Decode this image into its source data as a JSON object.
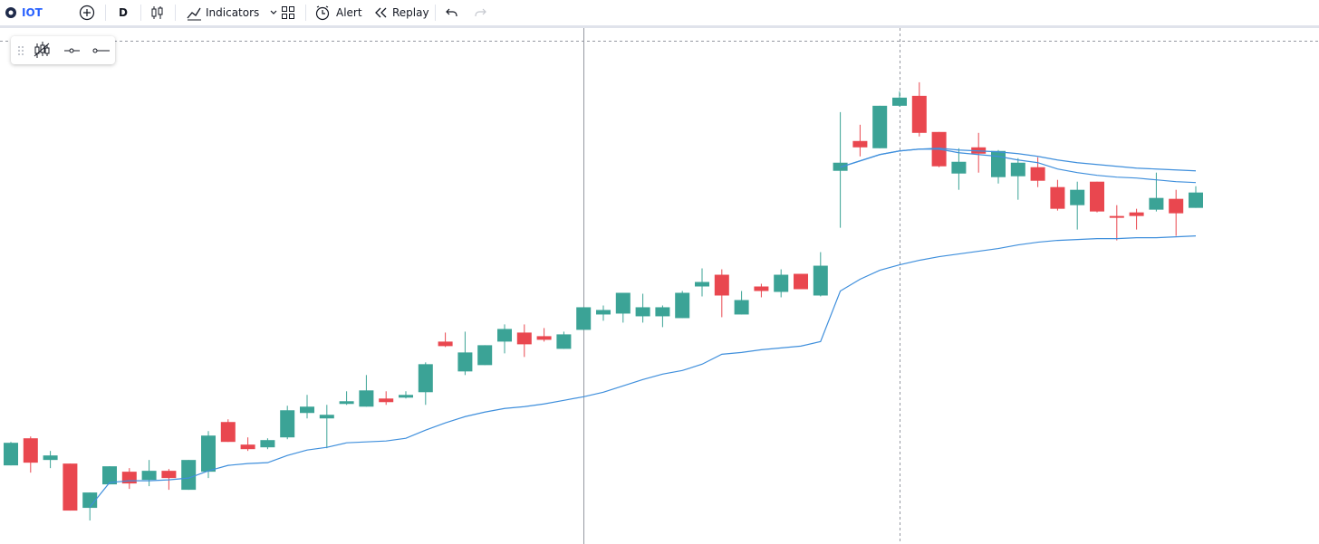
{
  "toolbar": {
    "symbol": "IOT",
    "interval": "D",
    "indicators": "Indicators",
    "alert": "Alert",
    "replay": "Replay"
  },
  "chart_data": {
    "type": "candlestick",
    "ylim": [
      0,
      571
    ],
    "up_color": "#3ba396",
    "down_color": "#e9474f",
    "open": [
      87,
      117,
      93,
      89,
      40,
      66,
      80,
      71,
      81,
      60,
      80,
      135,
      110,
      107,
      118,
      145,
      139,
      155,
      152,
      161,
      162,
      168,
      224,
      191,
      198,
      224,
      234,
      230,
      216,
      237,
      254,
      255,
      252,
      252,
      250,
      285,
      298,
      254,
      285,
      279,
      299,
      275,
      413,
      446,
      438,
      485,
      496,
      456,
      410,
      439,
      406,
      407,
      417,
      395,
      375,
      401,
      363,
      367,
      370,
      382,
      372
    ],
    "high": [
      113,
      119,
      103,
      89,
      57,
      86,
      84,
      93,
      83,
      93,
      125,
      138,
      118,
      117,
      153,
      165,
      154,
      169,
      187,
      169,
      169,
      201,
      234,
      235,
      220,
      243,
      243,
      239,
      235,
      262,
      264,
      278,
      277,
      264,
      280,
      305,
      304,
      280,
      288,
      304,
      299,
      323,
      478,
      464,
      485,
      501,
      511,
      456,
      438,
      455,
      436,
      427,
      428,
      403,
      401,
      401,
      375,
      371,
      411,
      392,
      396
    ],
    "low": [
      87,
      79,
      84,
      37,
      26,
      66,
      61,
      64,
      60,
      60,
      73,
      113,
      103,
      105,
      116,
      139,
      106,
      154,
      152,
      154,
      161,
      154,
      218,
      187,
      198,
      211,
      207,
      224,
      216,
      237,
      247,
      245,
      245,
      240,
      250,
      274,
      251,
      254,
      273,
      273,
      282,
      274,
      350,
      429,
      438,
      484,
      451,
      417,
      392,
      411,
      399,
      381,
      395,
      369,
      348,
      367,
      336,
      348,
      368,
      341,
      372
    ],
    "close": [
      112,
      90,
      98,
      37,
      57,
      86,
      67,
      81,
      73,
      93,
      120,
      113,
      105,
      115,
      148,
      152,
      143,
      158,
      170,
      157,
      165,
      199,
      219,
      212,
      220,
      238,
      221,
      226,
      232,
      262,
      259,
      278,
      262,
      262,
      278,
      290,
      275,
      270,
      280,
      298,
      282,
      308,
      422,
      439,
      485,
      494,
      455,
      418,
      423,
      432,
      435,
      422,
      402,
      371,
      392,
      368,
      361,
      363,
      383,
      366,
      389
    ],
    "series": [
      {
        "color": "#3f8fdc",
        "values": [
          null,
          null,
          null,
          null,
          41,
          68,
          70,
          70,
          71,
          73,
          81,
          87,
          89,
          90,
          98,
          104,
          107,
          112,
          113,
          114,
          117,
          126,
          134,
          141,
          146,
          150,
          152,
          155,
          159,
          163,
          168,
          175,
          182,
          188,
          192,
          199,
          210,
          212,
          215,
          217,
          219,
          224,
          280,
          293,
          303,
          309,
          314,
          318,
          321,
          324,
          327,
          331,
          334,
          336,
          337,
          338,
          338,
          339,
          339,
          340,
          341
        ]
      },
      {
        "color": "#3f8fdc",
        "values": [
          null,
          null,
          null,
          null,
          null,
          null,
          null,
          null,
          null,
          null,
          null,
          null,
          null,
          null,
          null,
          null,
          null,
          null,
          null,
          null,
          null,
          null,
          null,
          null,
          null,
          null,
          null,
          null,
          null,
          null,
          null,
          null,
          null,
          null,
          null,
          null,
          null,
          null,
          null,
          null,
          null,
          null,
          417,
          424,
          431,
          435,
          437,
          437,
          433,
          431,
          429,
          425,
          422,
          415,
          411,
          408,
          406,
          405,
          403,
          401,
          400
        ]
      },
      {
        "color": "#3f8fdc",
        "values": [
          null,
          null,
          null,
          null,
          null,
          null,
          null,
          null,
          null,
          null,
          null,
          null,
          null,
          null,
          null,
          null,
          null,
          null,
          null,
          null,
          null,
          null,
          null,
          null,
          null,
          null,
          null,
          null,
          null,
          null,
          null,
          null,
          null,
          null,
          null,
          null,
          null,
          null,
          null,
          null,
          null,
          null,
          417,
          424,
          431,
          435,
          437,
          438,
          436,
          435,
          434,
          432,
          429,
          425,
          422,
          420,
          418,
          416,
          415,
          414,
          413
        ]
      }
    ]
  }
}
